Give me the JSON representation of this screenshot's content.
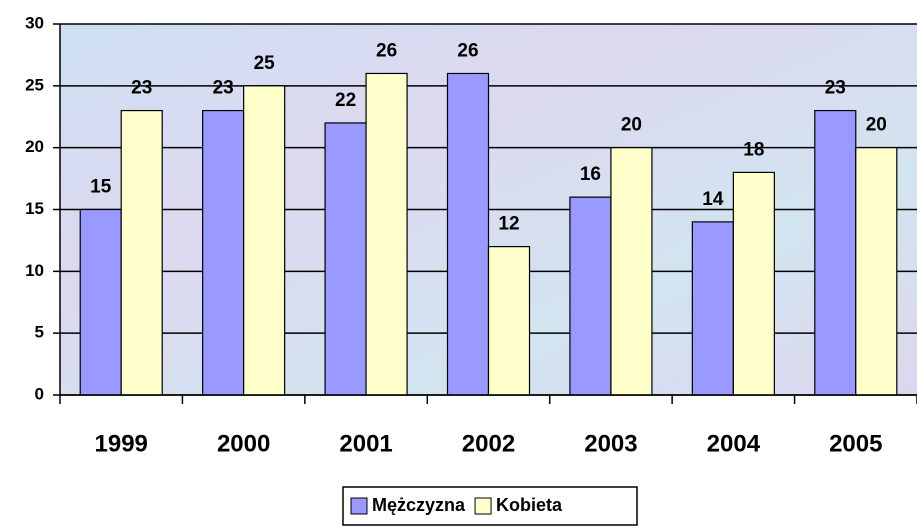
{
  "chart_data": {
    "type": "bar",
    "categories": [
      "1999",
      "2000",
      "2001",
      "2002",
      "2003",
      "2004",
      "2005"
    ],
    "series": [
      {
        "name": "Mężczyzna",
        "color": "#9999ff",
        "values": [
          15,
          23,
          22,
          26,
          16,
          14,
          23
        ]
      },
      {
        "name": "Kobieta",
        "color": "#ffffcc",
        "values": [
          23,
          25,
          26,
          12,
          20,
          18,
          20
        ]
      }
    ],
    "ylim": [
      0,
      30
    ],
    "yticks": [
      0,
      5,
      10,
      15,
      20,
      25,
      30
    ],
    "grid": true,
    "legend": "bottom",
    "data_labels": true
  }
}
